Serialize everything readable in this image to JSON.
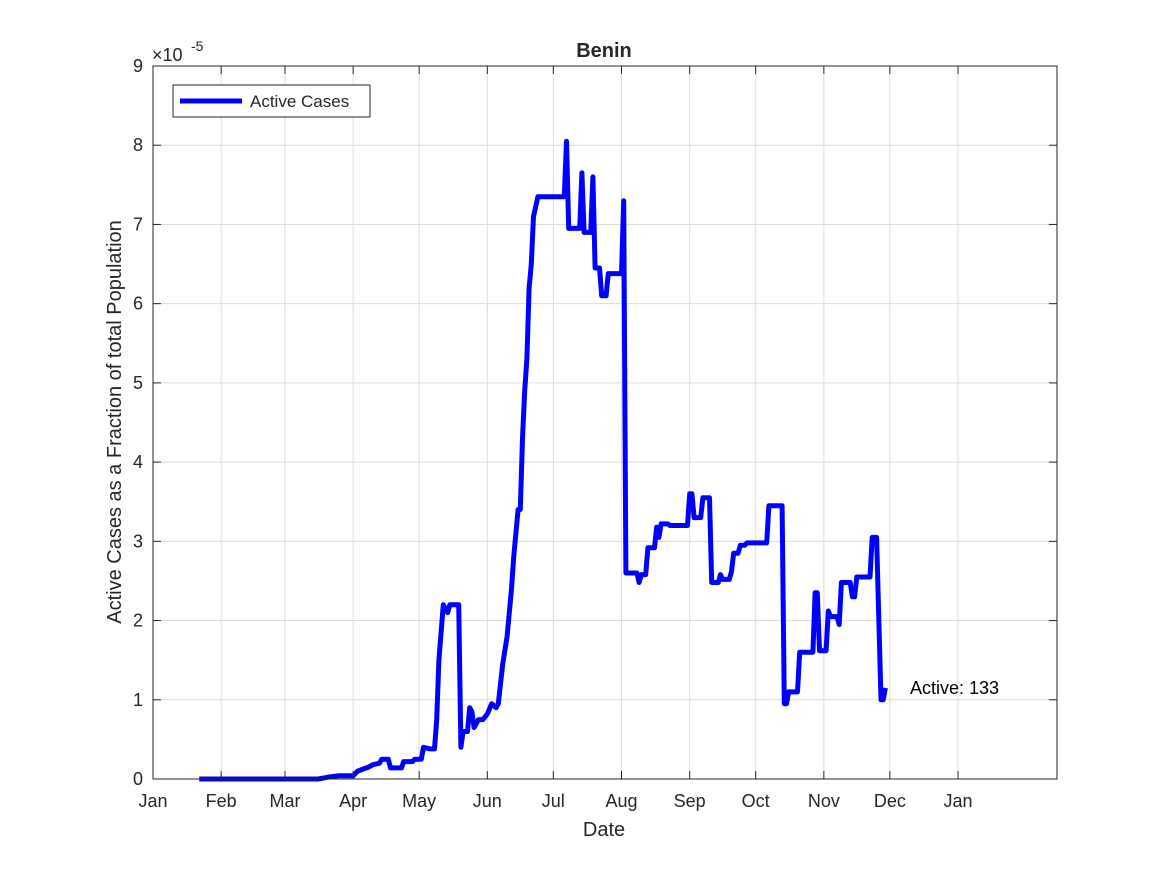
{
  "chart_data": {
    "type": "line",
    "title": "Benin",
    "xlabel": "Date",
    "ylabel": "Active Cases as a Fraction of total Population",
    "y_exponent_label": "×10",
    "y_exponent_power": "-5",
    "x_tick_labels": [
      "Jan",
      "Feb",
      "Mar",
      "Apr",
      "May",
      "Jun",
      "Jul",
      "Aug",
      "Sep",
      "Oct",
      "Nov",
      "Dec",
      "Jan"
    ],
    "y_tick_labels": [
      "0",
      "1",
      "2",
      "3",
      "4",
      "5",
      "6",
      "7",
      "8",
      "9"
    ],
    "xlim": [
      "2020-01-01",
      "2021-02-15"
    ],
    "ylim": [
      0,
      9
    ],
    "grid": true,
    "legend_placement": "top-left",
    "annotation": "Active: 133",
    "series": [
      {
        "name": "Active Cases",
        "color": "#0000ff",
        "points": [
          [
            "2020-01-22",
            0
          ],
          [
            "2020-03-16",
            0
          ],
          [
            "2020-03-20",
            0.02
          ],
          [
            "2020-03-25",
            0.04
          ],
          [
            "2020-04-01",
            0.04
          ],
          [
            "2020-04-03",
            0.1
          ],
          [
            "2020-04-05",
            0.12
          ],
          [
            "2020-04-08",
            0.15
          ],
          [
            "2020-04-10",
            0.18
          ],
          [
            "2020-04-13",
            0.2
          ],
          [
            "2020-04-14",
            0.25
          ],
          [
            "2020-04-17",
            0.25
          ],
          [
            "2020-04-18",
            0.14
          ],
          [
            "2020-04-23",
            0.14
          ],
          [
            "2020-04-24",
            0.22
          ],
          [
            "2020-04-28",
            0.22
          ],
          [
            "2020-04-29",
            0.25
          ],
          [
            "2020-05-02",
            0.25
          ],
          [
            "2020-05-03",
            0.4
          ],
          [
            "2020-05-06",
            0.38
          ],
          [
            "2020-05-08",
            0.38
          ],
          [
            "2020-05-09",
            0.75
          ],
          [
            "2020-05-10",
            1.5
          ],
          [
            "2020-05-12",
            2.2
          ],
          [
            "2020-05-14",
            2.1
          ],
          [
            "2020-05-15",
            2.2
          ],
          [
            "2020-05-19",
            2.2
          ],
          [
            "2020-05-20",
            0.4
          ],
          [
            "2020-05-21",
            0.6
          ],
          [
            "2020-05-23",
            0.6
          ],
          [
            "2020-05-24",
            0.9
          ],
          [
            "2020-05-25",
            0.85
          ],
          [
            "2020-05-26",
            0.65
          ],
          [
            "2020-05-28",
            0.75
          ],
          [
            "2020-05-30",
            0.75
          ],
          [
            "2020-06-01",
            0.82
          ],
          [
            "2020-06-03",
            0.95
          ],
          [
            "2020-06-05",
            0.9
          ],
          [
            "2020-06-06",
            0.95
          ],
          [
            "2020-06-08",
            1.45
          ],
          [
            "2020-06-10",
            1.8
          ],
          [
            "2020-06-12",
            2.4
          ],
          [
            "2020-06-13",
            2.8
          ],
          [
            "2020-06-15",
            3.4
          ],
          [
            "2020-06-16",
            3.4
          ],
          [
            "2020-06-17",
            4.3
          ],
          [
            "2020-06-18",
            4.9
          ],
          [
            "2020-06-19",
            5.3
          ],
          [
            "2020-06-20",
            6.2
          ],
          [
            "2020-06-21",
            6.5
          ],
          [
            "2020-06-22",
            7.1
          ],
          [
            "2020-06-24",
            7.35
          ],
          [
            "2020-07-06",
            7.35
          ],
          [
            "2020-07-07",
            8.05
          ],
          [
            "2020-07-08",
            6.95
          ],
          [
            "2020-07-13",
            6.95
          ],
          [
            "2020-07-14",
            7.65
          ],
          [
            "2020-07-15",
            6.9
          ],
          [
            "2020-07-18",
            6.9
          ],
          [
            "2020-07-19",
            7.6
          ],
          [
            "2020-07-20",
            6.45
          ],
          [
            "2020-07-22",
            6.45
          ],
          [
            "2020-07-23",
            6.1
          ],
          [
            "2020-07-25",
            6.1
          ],
          [
            "2020-07-26",
            6.38
          ],
          [
            "2020-08-01",
            6.38
          ],
          [
            "2020-08-02",
            7.3
          ],
          [
            "2020-08-03",
            2.6
          ],
          [
            "2020-08-08",
            2.6
          ],
          [
            "2020-08-09",
            2.48
          ],
          [
            "2020-08-10",
            2.58
          ],
          [
            "2020-08-12",
            2.58
          ],
          [
            "2020-08-13",
            2.92
          ],
          [
            "2020-08-16",
            2.92
          ],
          [
            "2020-08-17",
            3.18
          ],
          [
            "2020-08-18",
            3.05
          ],
          [
            "2020-08-19",
            3.22
          ],
          [
            "2020-08-22",
            3.22
          ],
          [
            "2020-08-23",
            3.2
          ],
          [
            "2020-08-31",
            3.2
          ],
          [
            "2020-09-01",
            3.6
          ],
          [
            "2020-09-02",
            3.6
          ],
          [
            "2020-09-03",
            3.3
          ],
          [
            "2020-09-06",
            3.3
          ],
          [
            "2020-09-07",
            3.55
          ],
          [
            "2020-09-10",
            3.55
          ],
          [
            "2020-09-11",
            2.48
          ],
          [
            "2020-09-14",
            2.48
          ],
          [
            "2020-09-15",
            2.58
          ],
          [
            "2020-09-16",
            2.52
          ],
          [
            "2020-09-19",
            2.52
          ],
          [
            "2020-09-20",
            2.62
          ],
          [
            "2020-09-21",
            2.85
          ],
          [
            "2020-09-23",
            2.85
          ],
          [
            "2020-09-24",
            2.95
          ],
          [
            "2020-09-26",
            2.95
          ],
          [
            "2020-09-27",
            2.98
          ],
          [
            "2020-10-06",
            2.98
          ],
          [
            "2020-10-07",
            3.45
          ],
          [
            "2020-10-13",
            3.45
          ],
          [
            "2020-10-14",
            0.95
          ],
          [
            "2020-10-15",
            0.95
          ],
          [
            "2020-10-16",
            1.1
          ],
          [
            "2020-10-20",
            1.1
          ],
          [
            "2020-10-21",
            1.6
          ],
          [
            "2020-10-27",
            1.6
          ],
          [
            "2020-10-28",
            2.35
          ],
          [
            "2020-10-29",
            2.35
          ],
          [
            "2020-10-30",
            1.62
          ],
          [
            "2020-11-02",
            1.62
          ],
          [
            "2020-11-03",
            2.12
          ],
          [
            "2020-11-04",
            2.05
          ],
          [
            "2020-11-07",
            2.05
          ],
          [
            "2020-11-08",
            1.95
          ],
          [
            "2020-11-09",
            2.48
          ],
          [
            "2020-11-13",
            2.48
          ],
          [
            "2020-11-14",
            2.3
          ],
          [
            "2020-11-15",
            2.3
          ],
          [
            "2020-11-16",
            2.55
          ],
          [
            "2020-11-22",
            2.55
          ],
          [
            "2020-11-23",
            3.05
          ],
          [
            "2020-11-25",
            3.05
          ],
          [
            "2020-11-27",
            1.0
          ],
          [
            "2020-11-28",
            1.0
          ],
          [
            "2020-11-29",
            1.15
          ]
        ]
      }
    ]
  }
}
